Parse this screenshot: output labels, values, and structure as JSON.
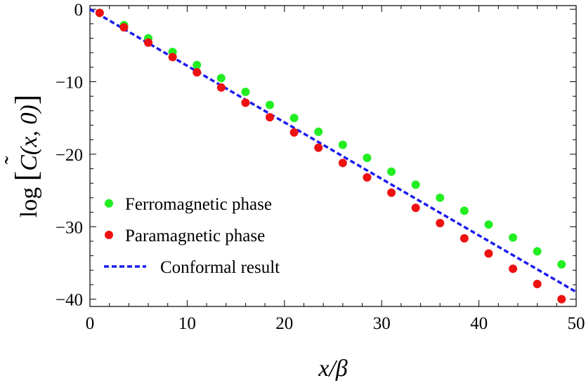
{
  "chart_data": {
    "type": "scatter",
    "title": "",
    "xlabel": "x/β",
    "ylabel": "log [C̃(x, 0)]",
    "ylabel_parts": {
      "prefix": "log",
      "symbol": "C",
      "tilde": "˜",
      "args": "(x, 0)"
    },
    "xlim": [
      0,
      50
    ],
    "ylim": [
      -41,
      0.5
    ],
    "x_ticks": [
      0,
      10,
      20,
      30,
      40,
      50
    ],
    "x_tick_labels": [
      "0",
      "10",
      "20",
      "30",
      "40",
      "50"
    ],
    "y_ticks": [
      0,
      -10,
      -20,
      -30,
      -40
    ],
    "y_tick_labels": [
      "0",
      "−10",
      "−20",
      "−30",
      "−40"
    ],
    "grid": false,
    "legend_position": "lower-left",
    "series": [
      {
        "name": "Ferromagnetic phase",
        "kind": "scatter",
        "color": "#22ee22",
        "x": [
          1,
          3.5,
          6,
          8.5,
          11,
          13.5,
          16,
          18.5,
          21,
          23.5,
          26,
          28.5,
          31,
          33.5,
          36,
          38.5,
          41,
          43.5,
          46,
          48.5
        ],
        "y": [
          -0.5,
          -2.2,
          -4.0,
          -5.9,
          -7.7,
          -9.5,
          -11.4,
          -13.2,
          -15.0,
          -16.9,
          -18.7,
          -20.5,
          -22.4,
          -24.2,
          -26.0,
          -27.8,
          -29.7,
          -31.5,
          -33.4,
          -35.2
        ]
      },
      {
        "name": "Paramagnetic phase",
        "kind": "scatter",
        "color": "#ee1111",
        "x": [
          1,
          3.5,
          6,
          8.5,
          11,
          13.5,
          16,
          18.5,
          21,
          23.5,
          26,
          28.5,
          31,
          33.5,
          36,
          38.5,
          41,
          43.5,
          46,
          48.5
        ],
        "y": [
          -0.5,
          -2.5,
          -4.6,
          -6.6,
          -8.7,
          -10.8,
          -12.9,
          -14.9,
          -17.0,
          -19.1,
          -21.2,
          -23.2,
          -25.3,
          -27.4,
          -29.5,
          -31.6,
          -33.7,
          -35.8,
          -37.9,
          -40.0
        ]
      },
      {
        "name": "Conformal result",
        "kind": "line",
        "style": "dashed",
        "color": "#1a1aee",
        "x": [
          0,
          50
        ],
        "y": [
          0,
          -39
        ]
      }
    ]
  }
}
